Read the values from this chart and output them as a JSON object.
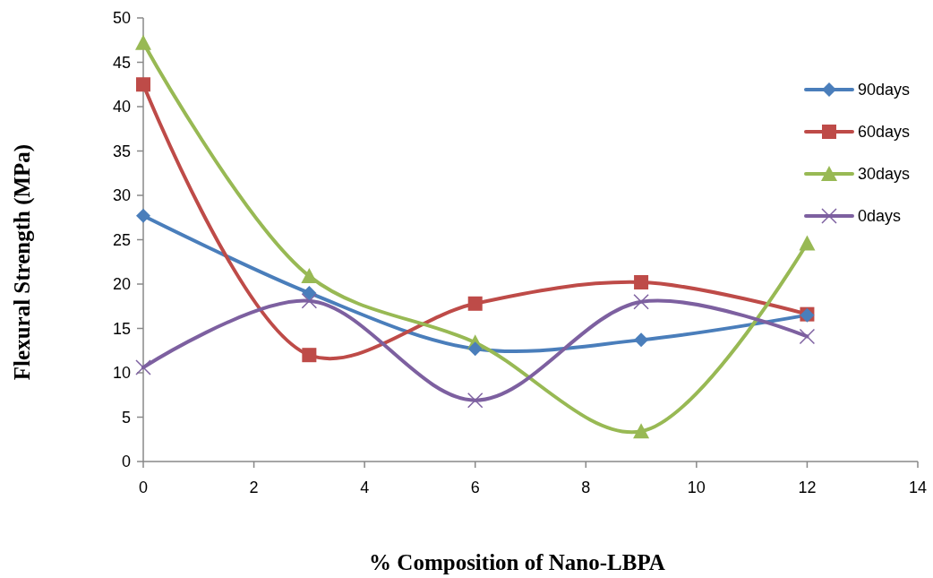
{
  "chart_data": {
    "type": "line",
    "xlabel": "% Composition of Nano-LBPA",
    "ylabel": "Flexural Strength (MPa)",
    "x": [
      0,
      3,
      6,
      9,
      12
    ],
    "series": [
      {
        "name": "90days",
        "color": "#4a7ebb",
        "marker": "diamond",
        "values": [
          27.7,
          19.0,
          12.7,
          13.7,
          16.5
        ]
      },
      {
        "name": "60days",
        "color": "#be4b48",
        "marker": "square",
        "values": [
          42.5,
          12.0,
          17.8,
          20.2,
          16.6
        ]
      },
      {
        "name": "30days",
        "color": "#98b954",
        "marker": "triangle",
        "values": [
          47.2,
          20.9,
          13.4,
          3.4,
          24.6
        ]
      },
      {
        "name": "0days",
        "color": "#7d60a0",
        "marker": "cross",
        "values": [
          10.6,
          18.1,
          6.9,
          18.0,
          14.1
        ]
      }
    ],
    "xlim": [
      0,
      14
    ],
    "xticks": [
      0,
      2,
      4,
      6,
      8,
      10,
      12,
      14
    ],
    "ylim": [
      0,
      50
    ],
    "yticks": [
      0,
      5,
      10,
      15,
      20,
      25,
      30,
      35,
      40,
      45,
      50
    ],
    "grid": false,
    "legend": "right",
    "line_style": "solid"
  }
}
